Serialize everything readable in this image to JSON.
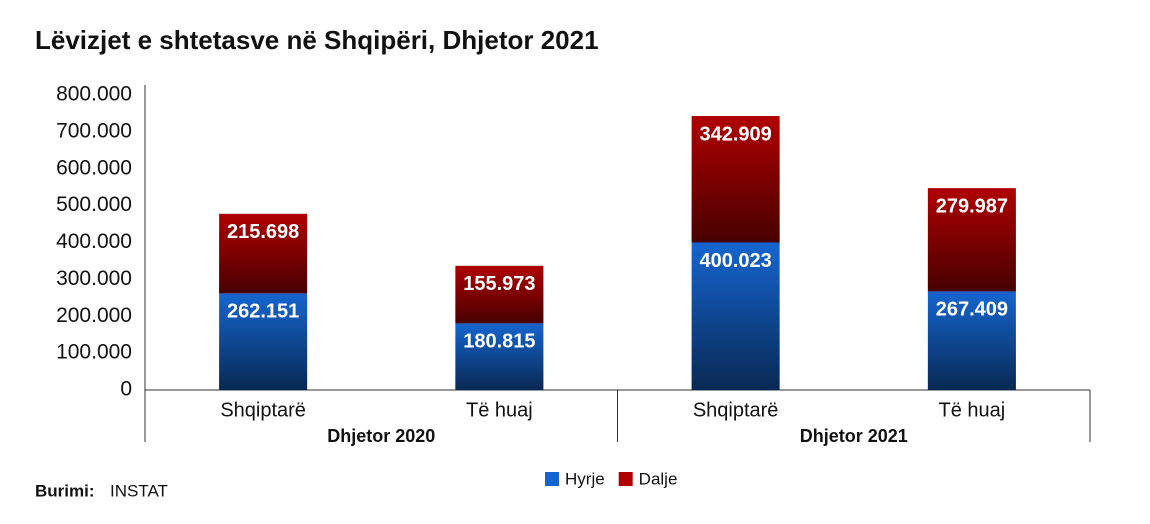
{
  "chart_data": {
    "type": "stacked-bar",
    "title": "Lëvizjet e shtetasve në Shqipëri, Dhjetor 2021",
    "categories": [
      "Shqiptarë",
      "Të huaj",
      "Shqiptarë",
      "Të huaj"
    ],
    "group_labels": [
      "Dhjetor 2020",
      "Dhjetor 2021"
    ],
    "series": [
      {
        "name": "Hyrje",
        "color": "#1565d0",
        "values": [
          262151,
          180815,
          400023,
          267409
        ],
        "value_labels": [
          "262.151",
          "180.815",
          "400.023",
          "267.409"
        ]
      },
      {
        "name": "Dalje",
        "color": "#b00000",
        "values": [
          215698,
          155973,
          342909,
          279987
        ],
        "value_labels": [
          "215.698",
          "155.973",
          "342.909",
          "279.987"
        ]
      }
    ],
    "ylim": [
      0,
      800000
    ],
    "yticks": [
      0,
      {
        "value": 100000,
        "label": "100.000"
      },
      {
        "value": 200000,
        "label": "200.000"
      },
      {
        "value": 300000,
        "label": "300.000"
      },
      {
        "value": 400000,
        "label": "400.000"
      },
      {
        "value": 500000,
        "label": "500.000"
      },
      {
        "value": 600000,
        "label": "600.000"
      },
      {
        "value": 700000,
        "label": "700.000"
      },
      {
        "value": 800000,
        "label": "800.000"
      }
    ],
    "grid": false,
    "source": {
      "label": "Burimi:",
      "text": "INSTAT"
    }
  }
}
